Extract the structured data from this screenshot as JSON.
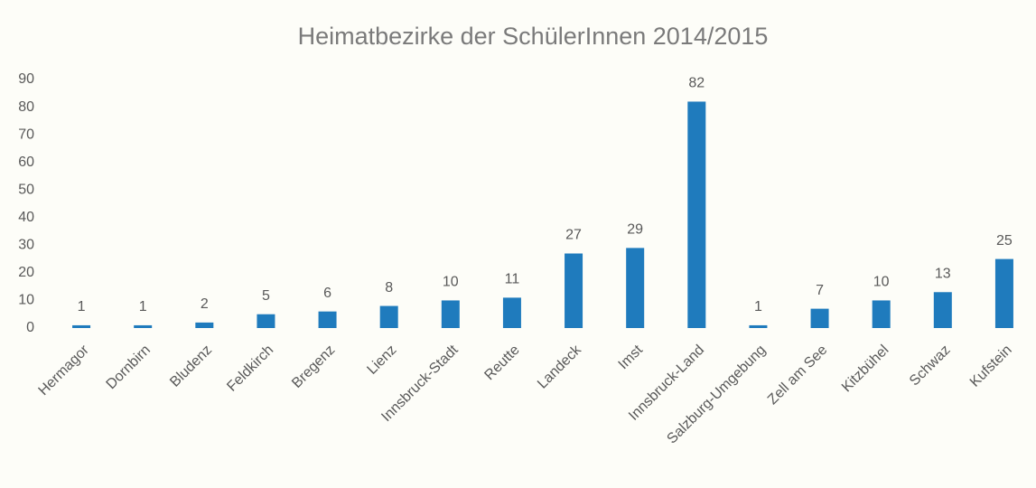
{
  "chart_data": {
    "type": "bar",
    "title": "Heimatbezirke der SchülerInnen 2014/2015",
    "categories": [
      "Hermagor",
      "Dornbirn",
      "Bludenz",
      "Feldkirch",
      "Bregenz",
      "Lienz",
      "Innsbruck-Stadt",
      "Reutte",
      "Landeck",
      "Imst",
      "Innsbruck-Land",
      "Salzburg-Umgebung",
      "Zell am See",
      "Kitzbühel",
      "Schwaz",
      "Kufstein"
    ],
    "values": [
      1,
      1,
      2,
      5,
      6,
      8,
      10,
      11,
      27,
      29,
      82,
      1,
      7,
      10,
      13,
      25
    ],
    "color": "#1f7bbd",
    "ylim": [
      0,
      90
    ],
    "yticks": [
      0,
      10,
      20,
      30,
      40,
      50,
      60,
      70,
      80,
      90
    ],
    "grid": false
  }
}
